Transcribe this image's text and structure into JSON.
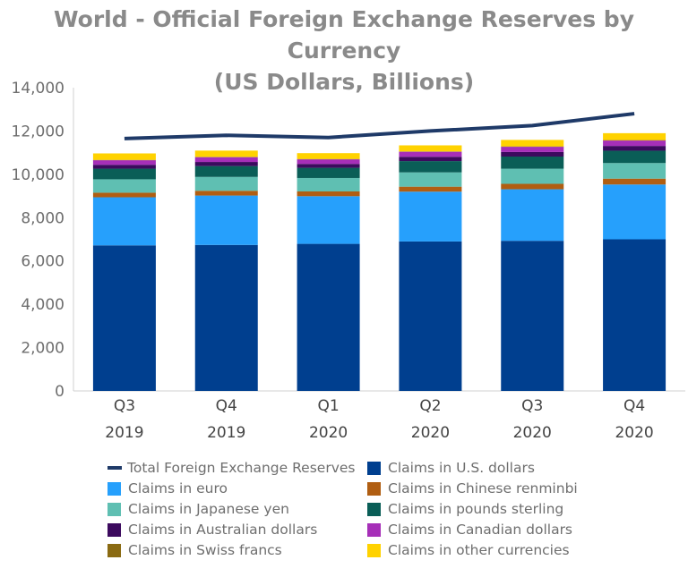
{
  "title": {
    "line1": "World - Official Foreign Exchange Reserves by Currency",
    "line2": "(US Dollars, Billions)"
  },
  "chart_data": {
    "type": "bar",
    "stacked": true,
    "categories": [
      [
        "Q3",
        "2019"
      ],
      [
        "Q4",
        "2019"
      ],
      [
        "Q1",
        "2020"
      ],
      [
        "Q2",
        "2020"
      ],
      [
        "Q3",
        "2020"
      ],
      [
        "Q4",
        "2020"
      ]
    ],
    "ylim": [
      0,
      14000
    ],
    "yticks": [
      0,
      2000,
      4000,
      6000,
      8000,
      10000,
      12000,
      14000
    ],
    "ytick_labels": [
      "0",
      "2,000",
      "4,000",
      "6,000",
      "8,000",
      "10,000",
      "12,000",
      "14,000"
    ],
    "grid": false,
    "legend_position": "bottom",
    "series": [
      {
        "name": "Claims in U.S. dollars",
        "color": "#003f8f",
        "values": [
          6720,
          6740,
          6790,
          6900,
          6930,
          7000
        ]
      },
      {
        "name": "Claims in euro",
        "color": "#26a0fc",
        "values": [
          2220,
          2280,
          2200,
          2300,
          2380,
          2530
        ]
      },
      {
        "name": "Claims in Chinese renminbi",
        "color": "#b05e12",
        "values": [
          210,
          220,
          220,
          230,
          250,
          270
        ]
      },
      {
        "name": "Claims in Japanese yen",
        "color": "#5fbfb2",
        "values": [
          620,
          640,
          620,
          660,
          700,
          720
        ]
      },
      {
        "name": "Claims in pounds sterling",
        "color": "#0a5e57",
        "values": [
          490,
          500,
          470,
          520,
          560,
          570
        ]
      },
      {
        "name": "Claims in Australian dollars",
        "color": "#3c0a5e",
        "values": [
          180,
          190,
          180,
          200,
          210,
          220
        ]
      },
      {
        "name": "Claims in Canadian dollars",
        "color": "#a62fb8",
        "values": [
          210,
          220,
          210,
          230,
          240,
          250
        ]
      },
      {
        "name": "Claims in Swiss francs",
        "color": "#8a6a12",
        "values": [
          15,
          15,
          17,
          17,
          18,
          19
        ]
      },
      {
        "name": "Claims in other currencies",
        "color": "#ffd200",
        "values": [
          300,
          290,
          270,
          280,
          300,
          320
        ]
      }
    ],
    "line_series": {
      "name": "Total Foreign Exchange Reserves",
      "color": "#1f3a68",
      "values": [
        11650,
        11800,
        11700,
        12000,
        12250,
        12800
      ]
    }
  },
  "legend": [
    {
      "label": "Total Foreign Exchange Reserves",
      "kind": "line",
      "color": "#1f3a68"
    },
    {
      "label": "Claims in U.S. dollars",
      "kind": "box",
      "color": "#003f8f"
    },
    {
      "label": "Claims in euro",
      "kind": "box",
      "color": "#26a0fc"
    },
    {
      "label": "Claims in Chinese renminbi",
      "kind": "box",
      "color": "#b05e12"
    },
    {
      "label": "Claims in Japanese yen",
      "kind": "box",
      "color": "#5fbfb2"
    },
    {
      "label": "Claims in pounds sterling",
      "kind": "box",
      "color": "#0a5e57"
    },
    {
      "label": "Claims in Australian dollars",
      "kind": "box",
      "color": "#3c0a5e"
    },
    {
      "label": "Claims in Canadian dollars",
      "kind": "box",
      "color": "#a62fb8"
    },
    {
      "label": "Claims in Swiss francs",
      "kind": "box",
      "color": "#8a6a12"
    },
    {
      "label": "Claims in other currencies",
      "kind": "box",
      "color": "#ffd200"
    }
  ]
}
